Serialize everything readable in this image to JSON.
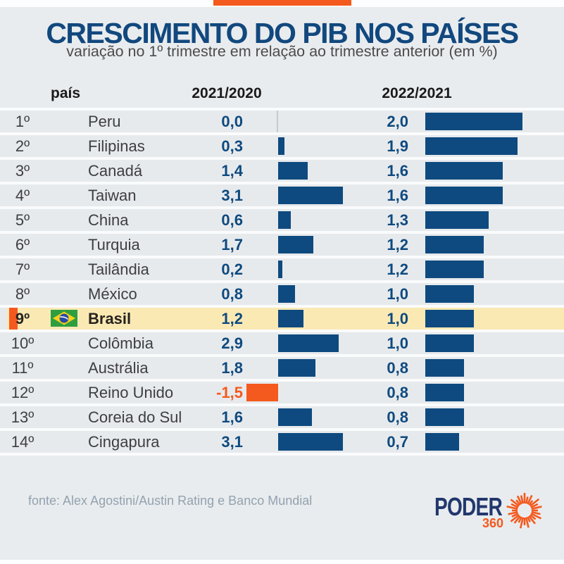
{
  "header": {
    "title": "CRESCIMENTO DO PIB NOS PAÍSES",
    "subtitle": "variação no 1º trimestre em relação ao trimestre anterior (em %)"
  },
  "table": {
    "col_country": "país",
    "col_2021": "2021/2020",
    "col_2022": "2022/2021",
    "rows": [
      {
        "rank": "1º",
        "country": "Peru",
        "v2021": "0,0",
        "n2021": 0.0,
        "v2022": "2,0",
        "n2022": 2.0,
        "highlight": false
      },
      {
        "rank": "2º",
        "country": "Filipinas",
        "v2021": "0,3",
        "n2021": 0.3,
        "v2022": "1,9",
        "n2022": 1.9,
        "highlight": false
      },
      {
        "rank": "3º",
        "country": "Canadá",
        "v2021": "1,4",
        "n2021": 1.4,
        "v2022": "1,6",
        "n2022": 1.6,
        "highlight": false
      },
      {
        "rank": "4º",
        "country": "Taiwan",
        "v2021": "3,1",
        "n2021": 3.1,
        "v2022": "1,6",
        "n2022": 1.6,
        "highlight": false
      },
      {
        "rank": "5º",
        "country": "China",
        "v2021": "0,6",
        "n2021": 0.6,
        "v2022": "1,3",
        "n2022": 1.3,
        "highlight": false
      },
      {
        "rank": "6º",
        "country": "Turquia",
        "v2021": "1,7",
        "n2021": 1.7,
        "v2022": "1,2",
        "n2022": 1.2,
        "highlight": false
      },
      {
        "rank": "7º",
        "country": "Tailândia",
        "v2021": "0,2",
        "n2021": 0.2,
        "v2022": "1,2",
        "n2022": 1.2,
        "highlight": false
      },
      {
        "rank": "8º",
        "country": "México",
        "v2021": "0,8",
        "n2021": 0.8,
        "v2022": "1,0",
        "n2022": 1.0,
        "highlight": false
      },
      {
        "rank": "9º",
        "country": "Brasil",
        "v2021": "1,2",
        "n2021": 1.2,
        "v2022": "1,0",
        "n2022": 1.0,
        "highlight": true
      },
      {
        "rank": "10º",
        "country": "Colômbia",
        "v2021": "2,9",
        "n2021": 2.9,
        "v2022": "1,0",
        "n2022": 1.0,
        "highlight": false
      },
      {
        "rank": "11º",
        "country": "Austrália",
        "v2021": "1,8",
        "n2021": 1.8,
        "v2022": "0,8",
        "n2022": 0.8,
        "highlight": false
      },
      {
        "rank": "12º",
        "country": "Reino Unido",
        "v2021": "-1,5",
        "n2021": -1.5,
        "v2022": "0,8",
        "n2022": 0.8,
        "highlight": false
      },
      {
        "rank": "13º",
        "country": "Coreia do Sul",
        "v2021": "1,6",
        "n2021": 1.6,
        "v2022": "0,8",
        "n2022": 0.8,
        "highlight": false
      },
      {
        "rank": "14º",
        "country": "Cingapura",
        "v2021": "3,1",
        "n2021": 3.1,
        "v2022": "0,7",
        "n2022": 0.7,
        "highlight": false
      }
    ]
  },
  "footer": {
    "source": "fonte: Alex Agostini/Austin Rating e Banco Mundial",
    "logo_text": "PODER",
    "logo_sub": "360"
  },
  "colors": {
    "bar_blue": "#0e4a7f",
    "title_blue": "#11487e",
    "orange": "#f4591d",
    "highlight_yellow": "#fbe9b4",
    "background": "#e9ecee"
  },
  "chart_data": {
    "type": "bar",
    "orientation": "horizontal",
    "title": "CRESCIMENTO DO PIB NOS PAÍSES",
    "subtitle": "variação no 1º trimestre em relação ao trimestre anterior (em %)",
    "categories": [
      "Peru",
      "Filipinas",
      "Canadá",
      "Taiwan",
      "China",
      "Turquia",
      "Tailândia",
      "México",
      "Brasil",
      "Colômbia",
      "Austrália",
      "Reino Unido",
      "Coreia do Sul",
      "Cingapura"
    ],
    "ranks": [
      "1º",
      "2º",
      "3º",
      "4º",
      "5º",
      "6º",
      "7º",
      "8º",
      "9º",
      "10º",
      "11º",
      "12º",
      "13º",
      "14º"
    ],
    "series": [
      {
        "name": "2021/2020",
        "values": [
          0.0,
          0.3,
          1.4,
          3.1,
          0.6,
          1.7,
          0.2,
          0.8,
          1.2,
          2.9,
          1.8,
          -1.5,
          1.6,
          3.1
        ]
      },
      {
        "name": "2022/2021",
        "values": [
          2.0,
          1.9,
          1.6,
          1.6,
          1.3,
          1.2,
          1.2,
          1.0,
          1.0,
          1.0,
          0.8,
          0.8,
          0.8,
          0.7
        ]
      }
    ],
    "highlighted_category": "Brasil",
    "negative_values_color": "#f4591d",
    "bar_color": "#0e4a7f",
    "grid": false,
    "legend_position": "column-headers",
    "source": "fonte: Alex Agostini/Austin Rating e Banco Mundial"
  }
}
